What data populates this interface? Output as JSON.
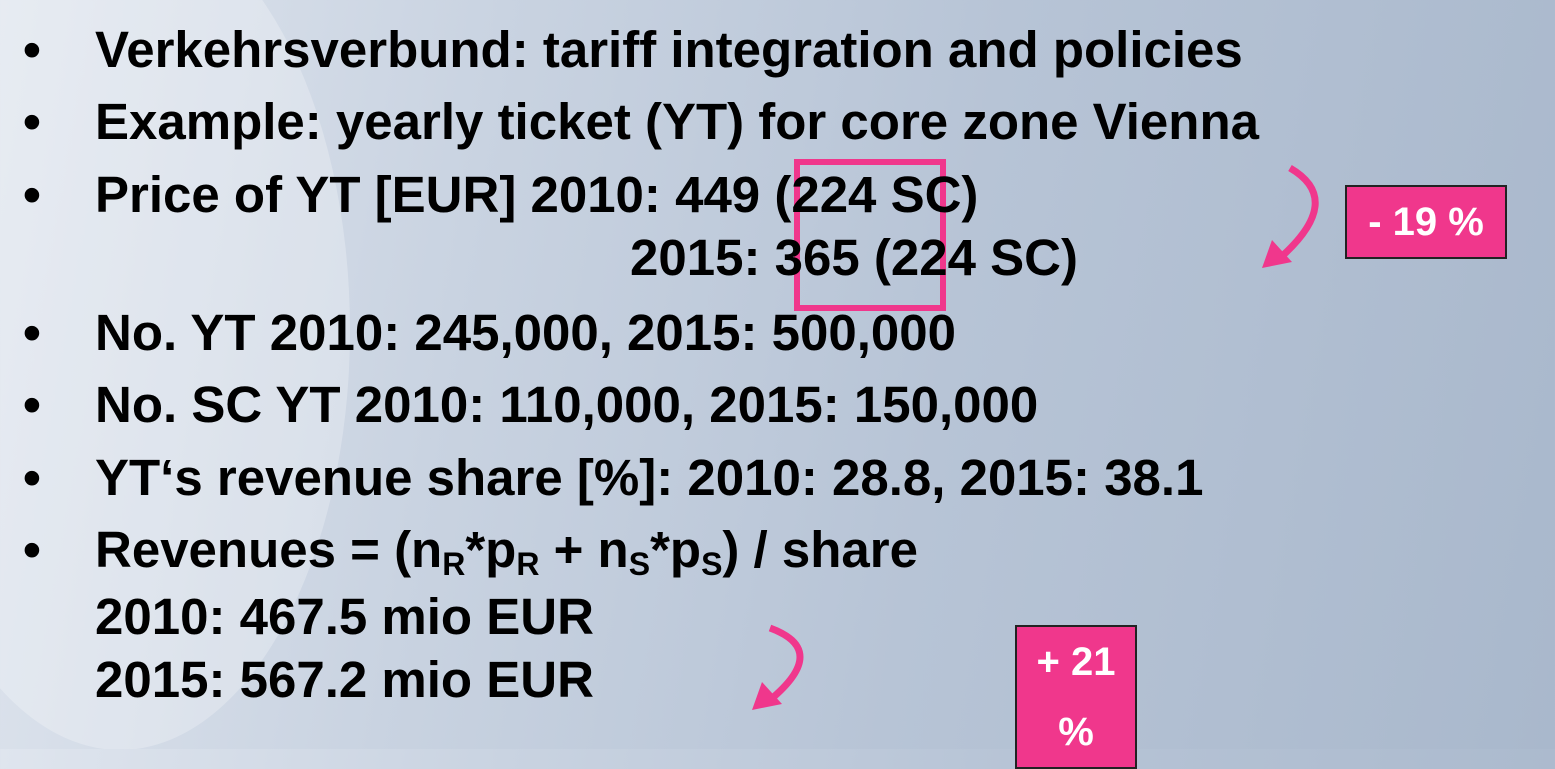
{
  "lines": [
    [
      "Verkehrsverbund: tariff integration and policies"
    ],
    [
      "Example: yearly ticket (YT) for core zone Vienna"
    ],
    [
      "Price of YT [EUR] 2010: ",
      "449",
      " (224 SC)"
    ],
    [
      "2015: ",
      "365",
      " (224 SC)"
    ],
    [
      "No. YT 2010: 245,000, 2015: 500,000"
    ],
    [
      "No. SC YT 2010: 110,000, 2015: 150,000"
    ],
    [
      "YT‘s revenue share [%]: 2010: 28.8, 2015: 38.1"
    ],
    [
      "Revenues = (n",
      "R",
      "*p",
      "R",
      " + n",
      "S",
      "*p",
      "S",
      ") / share"
    ],
    [
      "2010: 467.5 mio EUR"
    ],
    [
      "2015: 567.2 mio EUR"
    ]
  ],
  "annotations": {
    "price_change": "- 19 %",
    "revenue_change": "+ 21 %"
  }
}
